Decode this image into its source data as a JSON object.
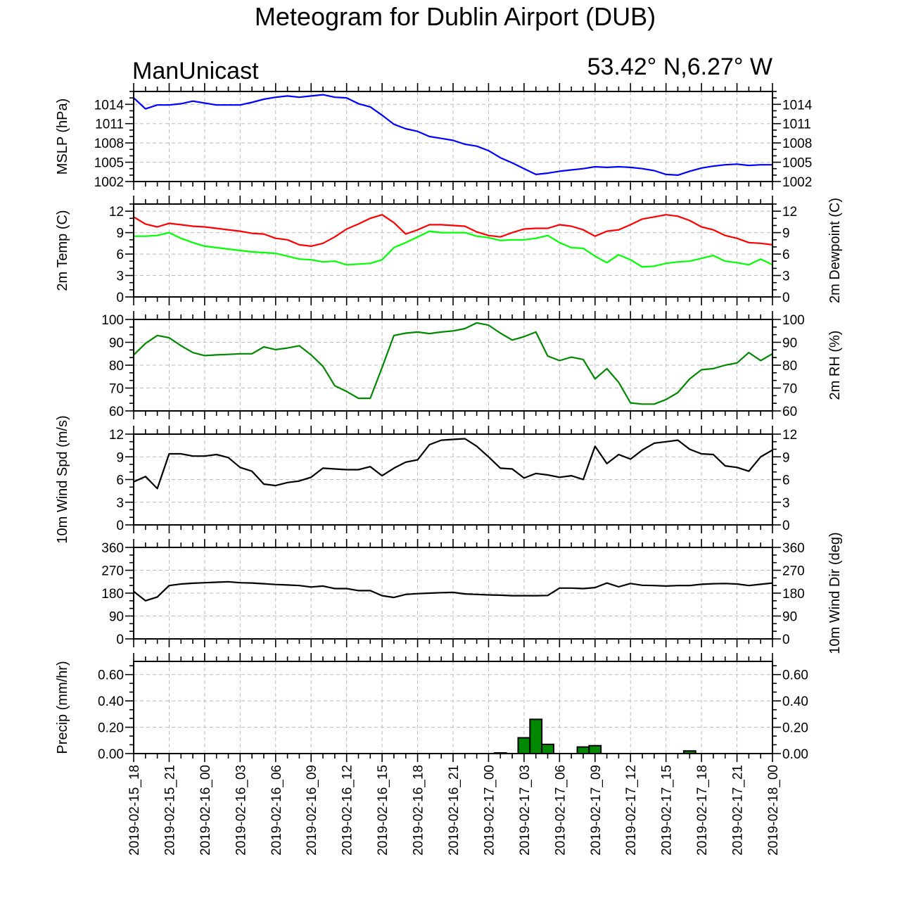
{
  "chart_data": {
    "type": "line",
    "title": "Meteogram for Dublin Airport (DUB)",
    "subtitle_left": "ManUnicast",
    "subtitle_right": "53.42° N,6.27° W",
    "time_labels": [
      "2019-02-15_18",
      "2019-02-15_21",
      "2019-02-16_00",
      "2019-02-16_03",
      "2019-02-16_06",
      "2019-02-16_09",
      "2019-02-16_12",
      "2019-02-16_15",
      "2019-02-16_18",
      "2019-02-16_21",
      "2019-02-17_00",
      "2019-02-17_03",
      "2019-02-17_06",
      "2019-02-17_09",
      "2019-02-17_12",
      "2019-02-17_15",
      "2019-02-17_18",
      "2019-02-17_21",
      "2019-02-18_00"
    ],
    "x_hours_range": [
      0,
      54
    ],
    "panels": [
      {
        "id": "mslp",
        "type": "line",
        "ylabel_left": "MSLP (hPa)",
        "ylabel_right": "",
        "ylim": [
          1002,
          1016
        ],
        "yticks": [
          1002,
          1005,
          1008,
          1011,
          1014
        ],
        "yticklabels": [
          "1002",
          "1005",
          "1008",
          "1011",
          "1014"
        ],
        "right_ticklabels": true,
        "series": [
          {
            "color": "#0000ff",
            "x": [
              0,
              1,
              2,
              3,
              4,
              5,
              6,
              7,
              8,
              9,
              10,
              11,
              12,
              13,
              14,
              15,
              16,
              17,
              18,
              19,
              20,
              21,
              22,
              23,
              24,
              25,
              26,
              27,
              28,
              29,
              30,
              31,
              32,
              33,
              34,
              35,
              36,
              37,
              38,
              39,
              40,
              41,
              42,
              43,
              44,
              45,
              46,
              47,
              48,
              49,
              50,
              51,
              52,
              53,
              54
            ],
            "values": [
              1015.0,
              1013.3,
              1013.9,
              1013.9,
              1014.1,
              1014.5,
              1014.2,
              1013.9,
              1013.9,
              1013.9,
              1014.3,
              1014.8,
              1015.1,
              1015.3,
              1015.1,
              1015.3,
              1015.5,
              1015.1,
              1015.0,
              1014.1,
              1013.6,
              1012.3,
              1010.9,
              1010.2,
              1009.8,
              1009.0,
              1008.7,
              1008.4,
              1007.8,
              1007.5,
              1006.8,
              1005.7,
              1004.9,
              1004.0,
              1003.1,
              1003.3,
              1003.6,
              1003.8,
              1004.0,
              1004.3,
              1004.2,
              1004.3,
              1004.2,
              1004.0,
              1003.7,
              1003.1,
              1003.0,
              1003.6,
              1004.1,
              1004.4,
              1004.6,
              1004.7,
              1004.5,
              1004.6,
              1004.6
            ]
          }
        ]
      },
      {
        "id": "temp",
        "type": "line",
        "ylabel_left": "2m Temp (C)",
        "ylabel_right": "2m Dewpoint (C)",
        "ylim": [
          0,
          13
        ],
        "yticks": [
          0,
          3,
          6,
          9,
          12
        ],
        "yticklabels": [
          "0",
          "3",
          "6",
          "9",
          "12"
        ],
        "right_ticklabels": true,
        "series": [
          {
            "color": "#ff0000",
            "x": [
              0,
              1,
              2,
              3,
              4,
              5,
              6,
              7,
              8,
              9,
              10,
              11,
              12,
              13,
              14,
              15,
              16,
              17,
              18,
              19,
              20,
              21,
              22,
              23,
              24,
              25,
              26,
              27,
              28,
              29,
              30,
              31,
              32,
              33,
              34,
              35,
              36,
              37,
              38,
              39,
              40,
              41,
              42,
              43,
              44,
              45,
              46,
              47,
              48,
              49,
              50,
              51,
              52,
              53,
              54
            ],
            "values": [
              11.2,
              10.2,
              9.8,
              10.3,
              10.1,
              9.9,
              9.8,
              9.6,
              9.4,
              9.2,
              8.9,
              8.8,
              8.2,
              8.0,
              7.3,
              7.1,
              7.5,
              8.4,
              9.5,
              10.2,
              11.0,
              11.5,
              10.4,
              8.8,
              9.4,
              10.1,
              10.1,
              10.0,
              9.9,
              9.1,
              8.6,
              8.4,
              9.0,
              9.5,
              9.6,
              9.6,
              10.1,
              9.9,
              9.4,
              8.5,
              9.2,
              9.4,
              10.1,
              10.9,
              11.2,
              11.5,
              11.3,
              10.7,
              9.8,
              9.4,
              8.6,
              8.2,
              7.6,
              7.5,
              7.3
            ]
          },
          {
            "color": "#00ff00",
            "x": [
              0,
              1,
              2,
              3,
              4,
              5,
              6,
              7,
              8,
              9,
              10,
              11,
              12,
              13,
              14,
              15,
              16,
              17,
              18,
              19,
              20,
              21,
              22,
              23,
              24,
              25,
              26,
              27,
              28,
              29,
              30,
              31,
              32,
              33,
              34,
              35,
              36,
              37,
              38,
              39,
              40,
              41,
              42,
              43,
              44,
              45,
              46,
              47,
              48,
              49,
              50,
              51,
              52,
              53,
              54
            ],
            "values": [
              8.5,
              8.5,
              8.6,
              9.0,
              8.2,
              7.6,
              7.1,
              6.9,
              6.7,
              6.5,
              6.3,
              6.2,
              6.1,
              5.7,
              5.3,
              5.2,
              4.9,
              5.0,
              4.5,
              4.6,
              4.7,
              5.2,
              6.9,
              7.6,
              8.4,
              9.2,
              9.0,
              9.0,
              9.0,
              8.5,
              8.3,
              7.9,
              8.0,
              8.0,
              8.2,
              8.6,
              7.6,
              6.9,
              6.8,
              5.7,
              4.8,
              5.9,
              5.2,
              4.2,
              4.3,
              4.7,
              4.9,
              5.0,
              5.4,
              5.8,
              5.0,
              4.8,
              4.5,
              5.3,
              4.5
            ]
          }
        ]
      },
      {
        "id": "rh",
        "type": "line",
        "ylabel_left": "",
        "ylabel_right": "2m RH (%)",
        "ylim": [
          60,
          100
        ],
        "yticks": [
          60,
          70,
          80,
          90,
          100
        ],
        "yticklabels": [
          "60",
          "70",
          "80",
          "90",
          "100"
        ],
        "right_ticklabels": true,
        "series": [
          {
            "color": "#008800",
            "x": [
              0,
              1,
              2,
              3,
              4,
              5,
              6,
              7,
              8,
              9,
              10,
              11,
              12,
              13,
              14,
              15,
              16,
              17,
              18,
              19,
              20,
              21,
              22,
              23,
              24,
              25,
              26,
              27,
              28,
              29,
              30,
              31,
              32,
              33,
              34,
              35,
              36,
              37,
              38,
              39,
              40,
              41,
              42,
              43,
              44,
              45,
              46,
              47,
              48,
              49,
              50,
              51,
              52,
              53,
              54
            ],
            "values": [
              84.5,
              89.5,
              93.0,
              92.0,
              88.5,
              85.5,
              84.2,
              84.5,
              84.7,
              85.0,
              85.0,
              88.0,
              86.8,
              87.5,
              88.5,
              84.5,
              79.5,
              71.0,
              68.5,
              65.5,
              65.5,
              79.0,
              93.0,
              94.0,
              94.5,
              93.8,
              94.5,
              95.0,
              96.0,
              98.5,
              97.5,
              94.0,
              91.0,
              92.5,
              94.5,
              84.0,
              82.0,
              83.5,
              82.5,
              74.0,
              78.5,
              72.5,
              63.5,
              63.0,
              63.0,
              65.0,
              68.0,
              74.0,
              78.0,
              78.5,
              80.0,
              81.0,
              85.5,
              82.0,
              85.0
            ]
          }
        ]
      },
      {
        "id": "wspd",
        "type": "line",
        "ylabel_left": "10m Wind Spd (m/s)",
        "ylabel_right": "",
        "ylim": [
          0,
          12
        ],
        "yticks": [
          0,
          3,
          6,
          9,
          12
        ],
        "yticklabels": [
          "0",
          "3",
          "6",
          "9",
          "12"
        ],
        "right_ticklabels": true,
        "series": [
          {
            "color": "#000000",
            "x": [
              0,
              1,
              2,
              3,
              4,
              5,
              6,
              7,
              8,
              9,
              10,
              11,
              12,
              13,
              14,
              15,
              16,
              17,
              18,
              19,
              20,
              21,
              22,
              23,
              24,
              25,
              26,
              27,
              28,
              29,
              30,
              31,
              32,
              33,
              34,
              35,
              36,
              37,
              38,
              39,
              40,
              41,
              42,
              43,
              44,
              45,
              46,
              47,
              48,
              49,
              50,
              51,
              52,
              53,
              54
            ],
            "values": [
              5.7,
              6.4,
              4.8,
              9.4,
              9.4,
              9.1,
              9.1,
              9.3,
              8.9,
              7.6,
              7.1,
              5.4,
              5.2,
              5.6,
              5.8,
              6.3,
              7.5,
              7.4,
              7.3,
              7.3,
              7.7,
              6.5,
              7.5,
              8.3,
              8.6,
              10.6,
              11.2,
              11.3,
              11.4,
              10.4,
              9.0,
              7.5,
              7.4,
              6.2,
              6.8,
              6.6,
              6.3,
              6.5,
              6.0,
              10.4,
              8.1,
              9.3,
              8.7,
              9.9,
              10.8,
              11.0,
              11.2,
              10.0,
              9.4,
              9.3,
              7.8,
              7.6,
              7.1,
              9.0,
              9.9
            ]
          }
        ]
      },
      {
        "id": "wdir",
        "type": "line",
        "ylabel_left": "",
        "ylabel_right": "10m Wind Dir (deg)",
        "ylim": [
          0,
          360
        ],
        "yticks": [
          0,
          90,
          180,
          270,
          360
        ],
        "yticklabels": [
          "0",
          "90",
          "180",
          "270",
          "360"
        ],
        "right_ticklabels": true,
        "series": [
          {
            "color": "#000000",
            "x": [
              0,
              1,
              2,
              3,
              4,
              5,
              6,
              7,
              8,
              9,
              10,
              11,
              12,
              13,
              14,
              15,
              16,
              17,
              18,
              19,
              20,
              21,
              22,
              23,
              24,
              25,
              26,
              27,
              28,
              29,
              30,
              31,
              32,
              33,
              34,
              35,
              36,
              37,
              38,
              39,
              40,
              41,
              42,
              43,
              44,
              45,
              46,
              47,
              48,
              49,
              50,
              51,
              52,
              53,
              54
            ],
            "values": [
              187,
              150,
              165,
              210,
              216,
              219,
              221,
              223,
              225,
              221,
              220,
              217,
              214,
              212,
              210,
              204,
              208,
              198,
              198,
              190,
              190,
              170,
              163,
              175,
              178,
              180,
              182,
              183,
              177,
              175,
              173,
              172,
              170,
              170,
              170,
              171,
              200,
              200,
              198,
              202,
              220,
              205,
              218,
              211,
              210,
              208,
              210,
              210,
              215,
              217,
              218,
              216,
              210,
              215,
              220
            ]
          }
        ]
      },
      {
        "id": "precip",
        "type": "bar",
        "ylabel_left": "Precip (mm/hr)",
        "ylabel_right": "",
        "ylim": [
          0,
          0.7
        ],
        "yticks": [
          0,
          0.2,
          0.4,
          0.6
        ],
        "yticklabels": [
          "0.00",
          "0.20",
          "0.40",
          "0.60"
        ],
        "right_ticklabels": true,
        "bar_color": "#008800",
        "x": [
          31,
          33,
          34,
          35,
          38,
          39,
          47
        ],
        "values": [
          0.005,
          0.12,
          0.26,
          0.07,
          0.05,
          0.06,
          0.02
        ]
      }
    ]
  }
}
